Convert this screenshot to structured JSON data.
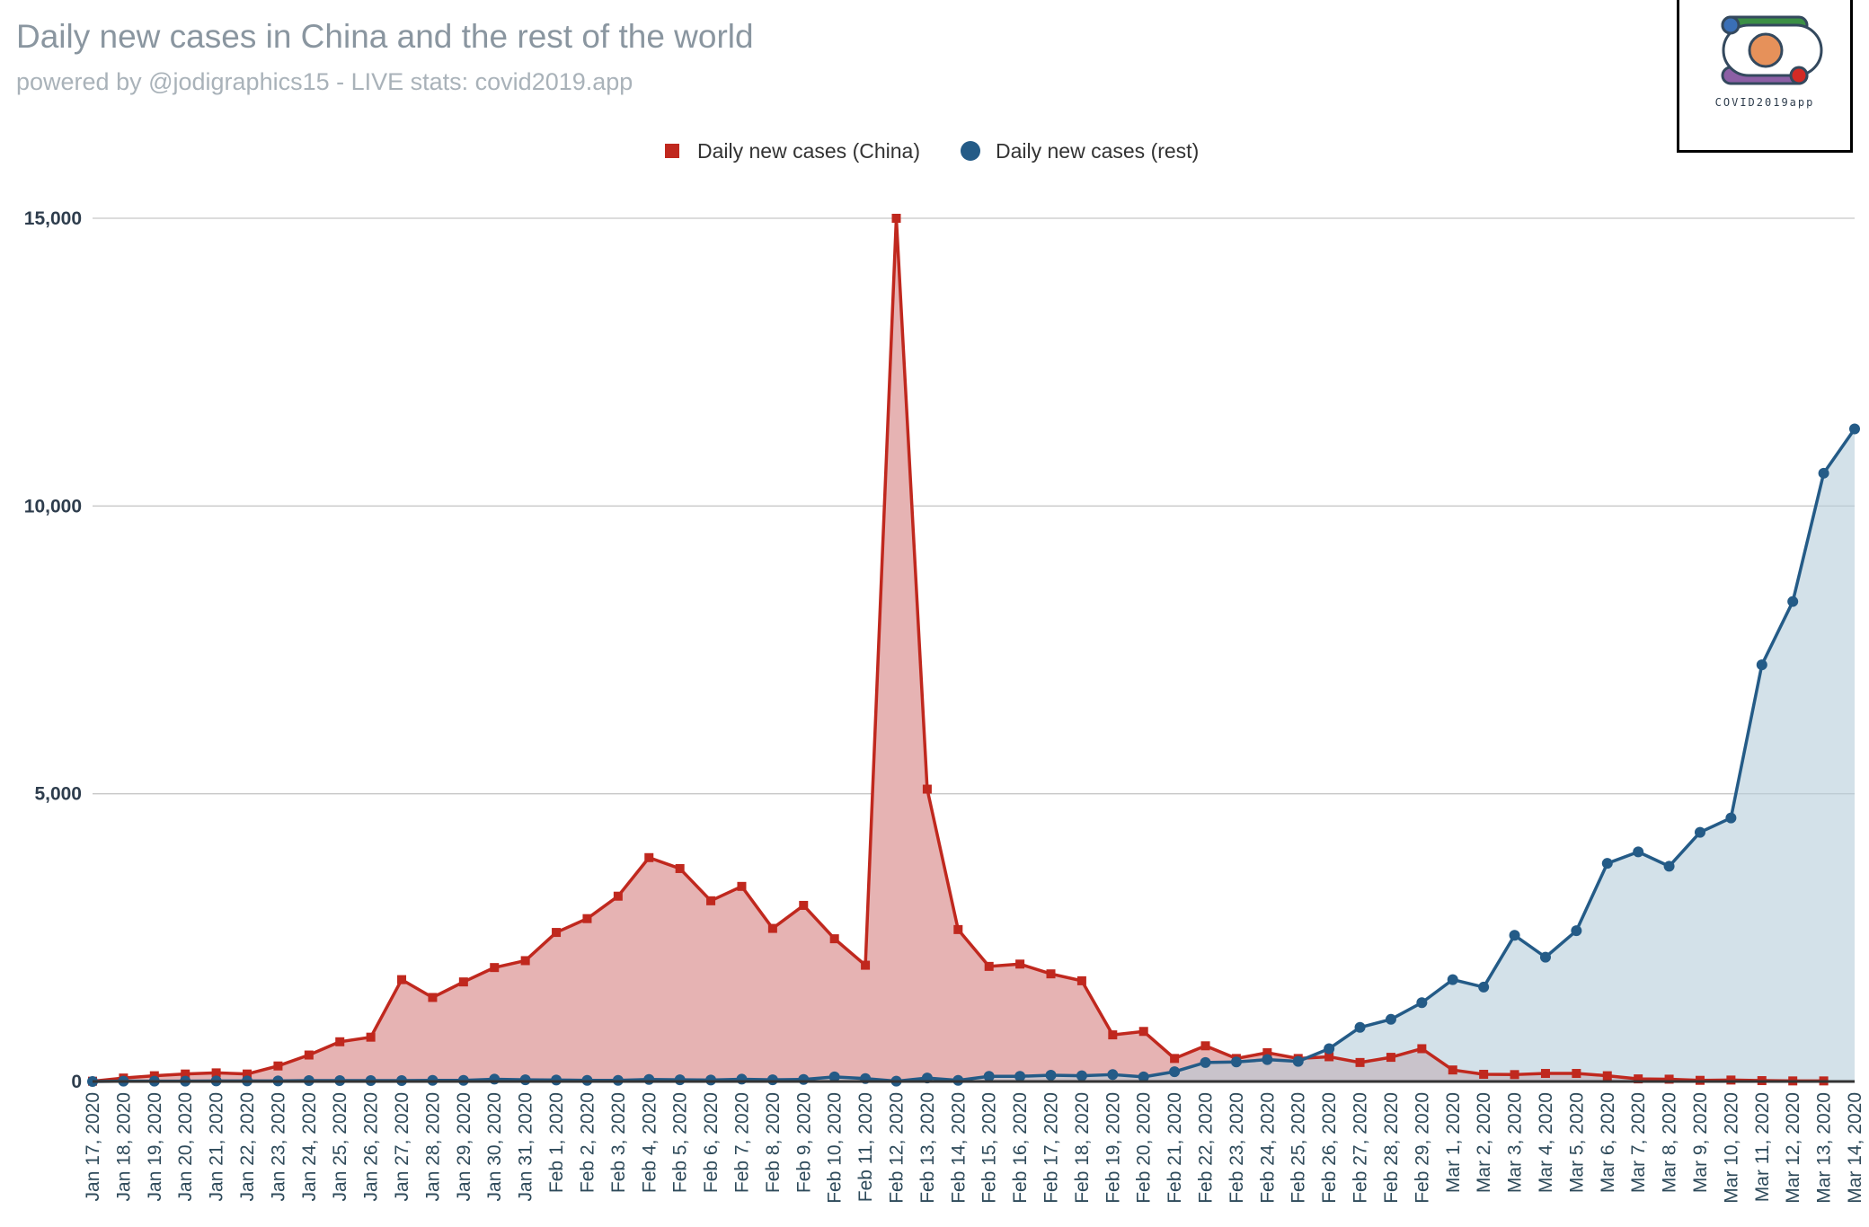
{
  "header": {
    "title": "Daily new cases in China and the rest of the world",
    "subtitle": "powered by @jodigraphics15 - LIVE stats: covid2019.app"
  },
  "logo": {
    "text": "COVID2019app"
  },
  "chart_data": {
    "type": "area",
    "title": "Daily new cases in China and the rest of the world",
    "xlabel": "",
    "ylabel": "",
    "ylim": [
      0,
      15000
    ],
    "yticks": [
      0,
      5000,
      10000,
      15000
    ],
    "ytick_labels": [
      "0",
      "5,000",
      "10,000",
      "15,000"
    ],
    "grid": true,
    "legend_position": "top-center",
    "categories": [
      "Jan 17, 2020",
      "Jan 18, 2020",
      "Jan 19, 2020",
      "Jan 20, 2020",
      "Jan 21, 2020",
      "Jan 22, 2020",
      "Jan 23, 2020",
      "Jan 24, 2020",
      "Jan 25, 2020",
      "Jan 26, 2020",
      "Jan 27, 2020",
      "Jan 28, 2020",
      "Jan 29, 2020",
      "Jan 30, 2020",
      "Jan 31, 2020",
      "Feb 1, 2020",
      "Feb 2, 2020",
      "Feb 3, 2020",
      "Feb 4, 2020",
      "Feb 5, 2020",
      "Feb 6, 2020",
      "Feb 7, 2020",
      "Feb 8, 2020",
      "Feb 9, 2020",
      "Feb 10, 2020",
      "Feb 11, 2020",
      "Feb 12, 2020",
      "Feb 13, 2020",
      "Feb 14, 2020",
      "Feb 15, 2020",
      "Feb 16, 2020",
      "Feb 17, 2020",
      "Feb 18, 2020",
      "Feb 19, 2020",
      "Feb 20, 2020",
      "Feb 21, 2020",
      "Feb 22, 2020",
      "Feb 23, 2020",
      "Feb 24, 2020",
      "Feb 25, 2020",
      "Feb 26, 2020",
      "Feb 27, 2020",
      "Feb 28, 2020",
      "Feb 29, 2020",
      "Mar 1, 2020",
      "Mar 2, 2020",
      "Mar 3, 2020",
      "Mar 4, 2020",
      "Mar 5, 2020",
      "Mar 6, 2020",
      "Mar 7, 2020",
      "Mar 8, 2020",
      "Mar 9, 2020",
      "Mar 10, 2020",
      "Mar 11, 2020",
      "Mar 12, 2020",
      "Mar 13, 2020",
      "Mar 14, 2020"
    ],
    "series": [
      {
        "name": "Daily new cases (China)",
        "color": "#c0281e",
        "fill": "#e6b3b3",
        "marker": "square",
        "values": [
          5,
          60,
          100,
          130,
          150,
          130,
          270,
          460,
          690,
          770,
          1770,
          1460,
          1730,
          1980,
          2100,
          2590,
          2830,
          3220,
          3890,
          3700,
          3140,
          3390,
          2660,
          3060,
          2480,
          2020,
          15000,
          5080,
          2640,
          2000,
          2040,
          1870,
          1750,
          810,
          870,
          400,
          620,
          400,
          500,
          400,
          430,
          330,
          420,
          570,
          200,
          125,
          120,
          140,
          140,
          100,
          45,
          40,
          20,
          25,
          15,
          10,
          10,
          null
        ]
      },
      {
        "name": "Daily new cases (rest)",
        "color": "#245b87",
        "fill": "#b5cddb",
        "marker": "circle",
        "values": [
          0,
          5,
          5,
          5,
          10,
          10,
          10,
          15,
          15,
          15,
          15,
          20,
          20,
          40,
          30,
          25,
          20,
          20,
          35,
          30,
          25,
          40,
          30,
          35,
          80,
          50,
          5,
          60,
          20,
          90,
          90,
          110,
          100,
          120,
          80,
          170,
          330,
          340,
          380,
          350,
          570,
          940,
          1080,
          1370,
          1770,
          1640,
          2540,
          2160,
          2620,
          3790,
          3990,
          3740,
          4330,
          4580,
          7240,
          8340,
          10570,
          11340
        ]
      }
    ]
  }
}
